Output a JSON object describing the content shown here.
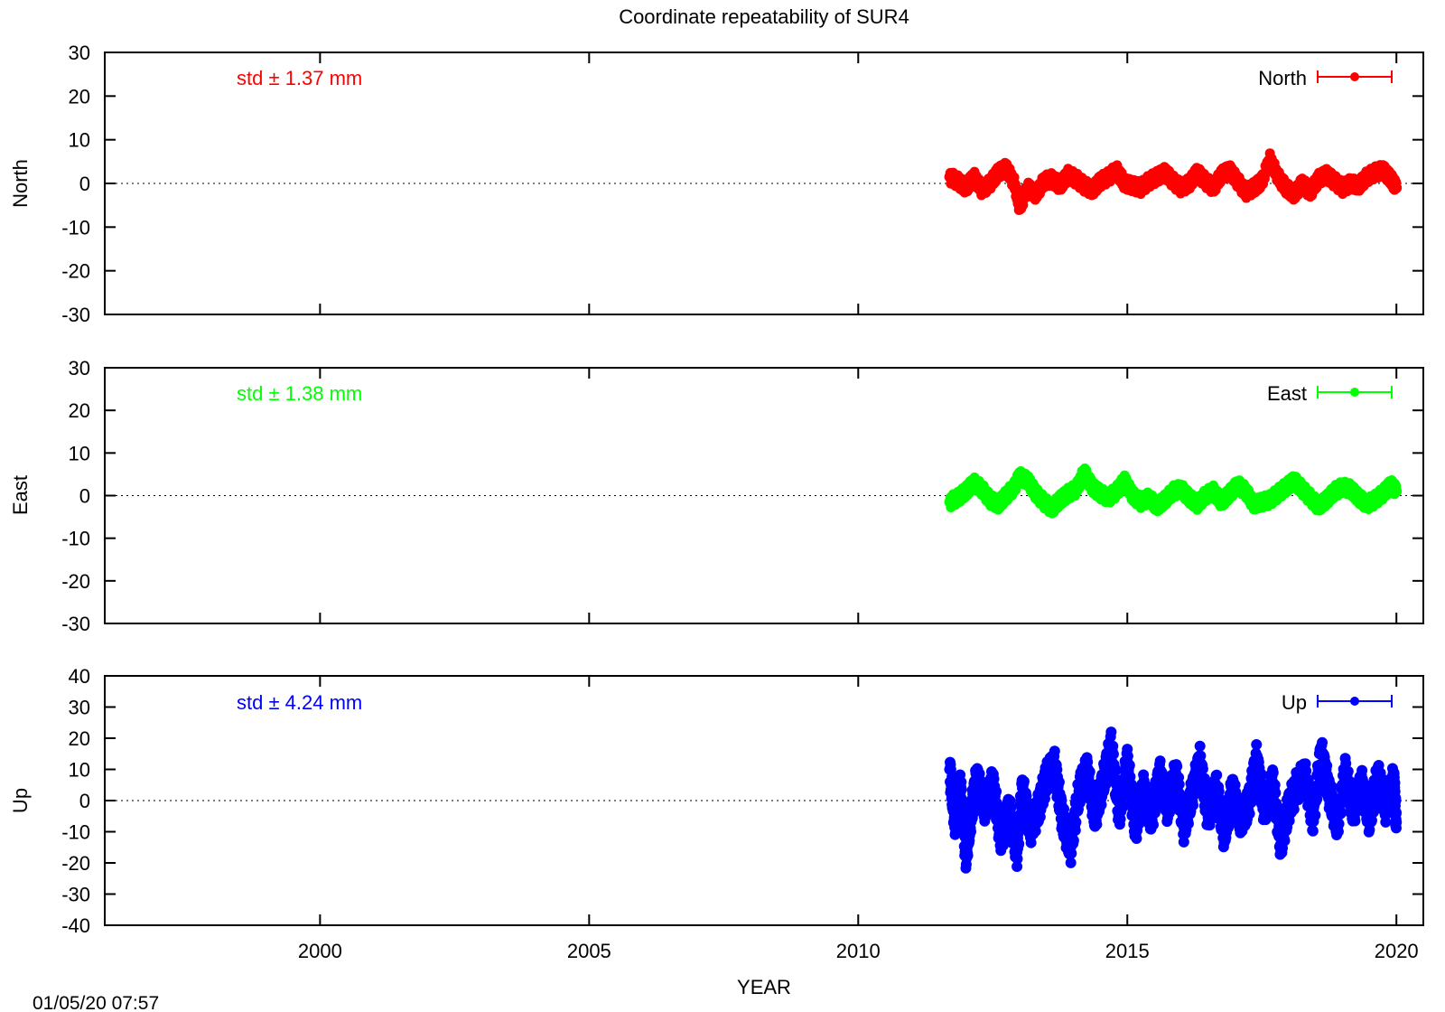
{
  "chart_data": [
    {
      "type": "scatter",
      "panel": "north",
      "title": "Coordinate repeatability of SUR4",
      "ylabel": "North",
      "xlabel": "",
      "xlim": [
        1996,
        2020.5
      ],
      "ylim": [
        -30,
        30
      ],
      "yticks": [
        -30,
        -20,
        -10,
        0,
        10,
        20,
        30
      ],
      "xticks": [
        2000,
        2005,
        2010,
        2015,
        2020
      ],
      "zero_line": true,
      "std_label": "std ± 1.37 mm",
      "color": "#ff0000",
      "legend": {
        "label": "North",
        "placement": "top-right"
      },
      "series": [
        {
          "name": "North",
          "x": [
            2011.7,
            2011.85,
            2012.0,
            2012.15,
            2012.3,
            2012.45,
            2012.6,
            2012.75,
            2012.9,
            2013.0,
            2013.15,
            2013.3,
            2013.45,
            2013.6,
            2013.75,
            2013.9,
            2014.05,
            2014.2,
            2014.35,
            2014.5,
            2014.65,
            2014.8,
            2014.95,
            2015.1,
            2015.25,
            2015.4,
            2015.55,
            2015.7,
            2015.85,
            2016.0,
            2016.15,
            2016.3,
            2016.45,
            2016.6,
            2016.75,
            2016.9,
            2017.05,
            2017.2,
            2017.35,
            2017.5,
            2017.65,
            2017.8,
            2017.95,
            2018.1,
            2018.25,
            2018.4,
            2018.55,
            2018.7,
            2018.85,
            2019.0,
            2019.15,
            2019.3,
            2019.45,
            2019.6,
            2019.75,
            2019.9,
            2020.0
          ],
          "y": [
            1.5,
            0.5,
            -1.0,
            1.5,
            -1.5,
            0.0,
            2.5,
            3.5,
            0.0,
            -5.5,
            -1.0,
            -2.5,
            0.5,
            1.0,
            -0.5,
            2.0,
            1.0,
            -0.5,
            -1.5,
            0.5,
            1.5,
            3.0,
            0.0,
            -0.5,
            -1.0,
            0.5,
            1.5,
            2.5,
            0.5,
            -1.0,
            0.0,
            2.5,
            0.5,
            -1.0,
            2.0,
            3.0,
            0.5,
            -2.0,
            -1.0,
            0.5,
            5.5,
            1.5,
            -1.0,
            -2.5,
            0.0,
            -2.0,
            1.0,
            2.0,
            0.5,
            -1.0,
            0.0,
            -0.5,
            1.5,
            2.5,
            3.0,
            1.0,
            -1.0
          ]
        }
      ]
    },
    {
      "type": "scatter",
      "panel": "east",
      "ylabel": "East",
      "xlabel": "",
      "xlim": [
        1996,
        2020.5
      ],
      "ylim": [
        -30,
        30
      ],
      "yticks": [
        -30,
        -20,
        -10,
        0,
        10,
        20,
        30
      ],
      "zero_line": true,
      "std_label": "std ± 1.38 mm",
      "color": "#00ff00",
      "legend": {
        "label": "East",
        "placement": "top-right"
      },
      "series": [
        {
          "name": "East",
          "x": [
            2011.7,
            2011.85,
            2012.0,
            2012.15,
            2012.3,
            2012.45,
            2012.6,
            2012.75,
            2012.9,
            2013.0,
            2013.15,
            2013.3,
            2013.45,
            2013.6,
            2013.75,
            2013.9,
            2014.05,
            2014.2,
            2014.35,
            2014.5,
            2014.65,
            2014.8,
            2014.95,
            2015.1,
            2015.25,
            2015.4,
            2015.55,
            2015.7,
            2015.85,
            2016.0,
            2016.15,
            2016.3,
            2016.45,
            2016.6,
            2016.75,
            2016.9,
            2017.05,
            2017.2,
            2017.35,
            2017.5,
            2017.65,
            2017.8,
            2017.95,
            2018.1,
            2018.25,
            2018.4,
            2018.55,
            2018.7,
            2018.85,
            2019.0,
            2019.15,
            2019.3,
            2019.45,
            2019.6,
            2019.75,
            2019.9,
            2020.0
          ],
          "y": [
            -1.5,
            -0.5,
            1.0,
            3.0,
            1.5,
            -1.0,
            -2.0,
            0.0,
            2.0,
            4.5,
            3.5,
            0.5,
            -1.5,
            -3.0,
            -1.0,
            0.5,
            1.5,
            5.5,
            2.0,
            0.5,
            -0.5,
            1.0,
            3.5,
            0.0,
            -1.5,
            -0.5,
            -2.5,
            -1.0,
            1.0,
            1.5,
            -0.5,
            -2.0,
            0.0,
            1.0,
            -1.5,
            0.5,
            2.5,
            1.0,
            -2.0,
            -1.5,
            -1.0,
            0.5,
            2.0,
            3.5,
            1.5,
            -0.5,
            -2.5,
            -1.0,
            1.0,
            2.0,
            1.5,
            -0.5,
            -2.0,
            -1.0,
            0.5,
            2.5,
            1.0
          ]
        }
      ]
    },
    {
      "type": "scatter",
      "panel": "up",
      "ylabel": "Up",
      "xlabel": "YEAR",
      "xlim": [
        1996,
        2020.5
      ],
      "ylim": [
        -40,
        40
      ],
      "yticks": [
        -40,
        -30,
        -20,
        -10,
        0,
        10,
        20,
        30,
        40
      ],
      "xticks": [
        2000,
        2005,
        2010,
        2015,
        2020
      ],
      "zero_line": true,
      "std_label": "std ± 4.24 mm",
      "color": "#0000ff",
      "legend": {
        "label": "Up",
        "placement": "top-right"
      },
      "series": [
        {
          "name": "Up",
          "x": [
            2011.7,
            2011.8,
            2011.9,
            2012.0,
            2012.1,
            2012.2,
            2012.35,
            2012.5,
            2012.65,
            2012.8,
            2012.95,
            2013.05,
            2013.2,
            2013.35,
            2013.5,
            2013.65,
            2013.8,
            2013.95,
            2014.1,
            2014.25,
            2014.4,
            2014.55,
            2014.7,
            2014.85,
            2015.0,
            2015.15,
            2015.3,
            2015.45,
            2015.6,
            2015.75,
            2015.9,
            2016.05,
            2016.2,
            2016.35,
            2016.5,
            2016.65,
            2016.8,
            2016.95,
            2017.1,
            2017.25,
            2017.4,
            2017.55,
            2017.7,
            2017.85,
            2018.0,
            2018.15,
            2018.3,
            2018.45,
            2018.6,
            2018.75,
            2018.9,
            2019.05,
            2019.2,
            2019.35,
            2019.5,
            2019.65,
            2019.8,
            2019.95,
            2020.0
          ],
          "y": [
            10.0,
            -7.0,
            4.5,
            -17.5,
            -4.0,
            7.0,
            -2.0,
            5.5,
            -12.0,
            -3.0,
            -16.5,
            4.0,
            -9.0,
            -2.5,
            7.5,
            11.0,
            -6.5,
            -15.0,
            3.0,
            9.5,
            -5.0,
            6.0,
            17.5,
            -4.5,
            12.5,
            -9.0,
            3.5,
            -6.0,
            8.5,
            -2.5,
            9.0,
            -8.5,
            2.0,
            12.5,
            -5.5,
            4.5,
            -11.0,
            3.5,
            -6.0,
            -1.5,
            13.0,
            -3.5,
            6.0,
            -14.0,
            -2.0,
            4.5,
            8.0,
            -6.0,
            15.5,
            2.5,
            -7.5,
            9.0,
            -3.5,
            5.5,
            -6.0,
            8.0,
            -2.0,
            6.5,
            -7.0
          ]
        }
      ]
    }
  ],
  "footer": {
    "timestamp": "01/05/20 07:57"
  }
}
